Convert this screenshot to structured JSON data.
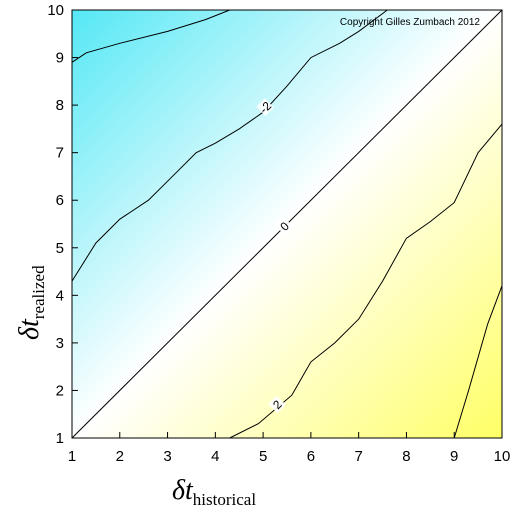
{
  "chart_data": {
    "type": "contour",
    "title": "",
    "annotation": "Copyright Gilles Zumbach 2012",
    "xlabel": {
      "symbol": "δt",
      "subscript": "historical"
    },
    "ylabel": {
      "symbol": "δt",
      "subscript": "realized"
    },
    "xlim": [
      1,
      10
    ],
    "ylim": [
      1,
      10
    ],
    "xticks": [
      1,
      2,
      3,
      4,
      5,
      6,
      7,
      8,
      9,
      10
    ],
    "yticks": [
      1,
      2,
      3,
      4,
      5,
      6,
      7,
      8,
      9,
      10
    ],
    "colormap": {
      "low": "#ffff66",
      "mid": "#ffffff",
      "high": "#55e8f5"
    },
    "contours": [
      {
        "level": "-2",
        "label": "-2",
        "points": [
          [
            1,
            4.3
          ],
          [
            1.5,
            5.1
          ],
          [
            2,
            5.6
          ],
          [
            2.6,
            6.0
          ],
          [
            3,
            6.4
          ],
          [
            3.6,
            7.0
          ],
          [
            4,
            7.2
          ],
          [
            4.5,
            7.5
          ],
          [
            5,
            7.85
          ],
          [
            5.5,
            8.4
          ],
          [
            6,
            9.0
          ],
          [
            6.6,
            9.3
          ],
          [
            7,
            9.55
          ],
          [
            7.6,
            10
          ]
        ],
        "label_at": [
          5.05,
          7.95
        ]
      },
      {
        "level": "-4",
        "label": "",
        "points": [
          [
            1,
            8.9
          ],
          [
            1.3,
            9.1
          ],
          [
            2,
            9.3
          ],
          [
            3,
            9.55
          ],
          [
            3.8,
            9.8
          ],
          [
            4.3,
            10
          ]
        ]
      },
      {
        "level": "0",
        "label": "0",
        "points": [
          [
            1,
            1
          ],
          [
            10,
            10
          ]
        ],
        "label_at": [
          5.45,
          5.45
        ]
      },
      {
        "level": "2",
        "label": "2",
        "points": [
          [
            4.3,
            1
          ],
          [
            4.9,
            1.3
          ],
          [
            5.6,
            1.9
          ],
          [
            6,
            2.6
          ],
          [
            6.5,
            3.0
          ],
          [
            7,
            3.5
          ],
          [
            7.5,
            4.3
          ],
          [
            8,
            5.2
          ],
          [
            8.5,
            5.55
          ],
          [
            9,
            5.95
          ],
          [
            9.5,
            7.0
          ],
          [
            10,
            7.6
          ]
        ],
        "label_at": [
          5.3,
          1.7
        ]
      },
      {
        "level": "4",
        "label": "",
        "points": [
          [
            9,
            1
          ],
          [
            9.3,
            2.0
          ],
          [
            9.7,
            3.4
          ],
          [
            10,
            4.2
          ]
        ]
      }
    ]
  }
}
